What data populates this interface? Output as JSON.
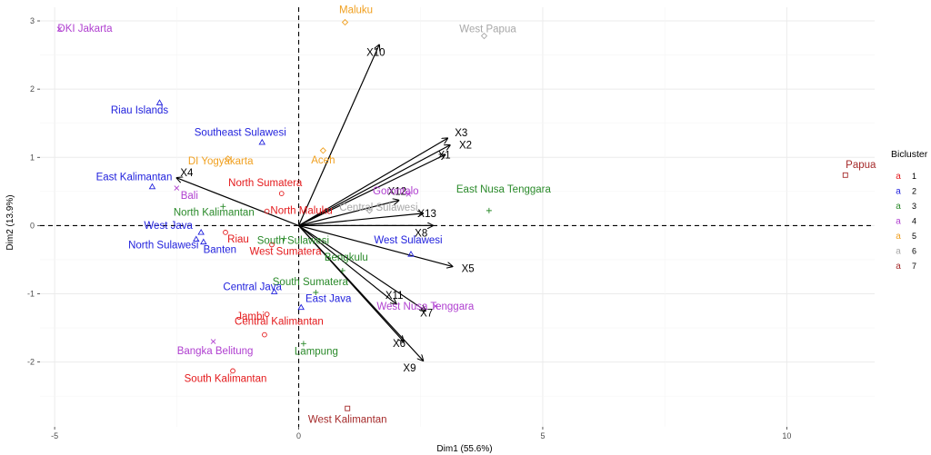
{
  "chart_data": {
    "type": "scatter",
    "subtype": "biplot",
    "xlabel": "Dim1 (55.6%)",
    "ylabel": "Dim2 (13.9%)",
    "xlim": [
      -5.3,
      11.8
    ],
    "ylim": [
      -2.95,
      3.2
    ],
    "xticks": [
      -5,
      0,
      5,
      10
    ],
    "yticks": [
      -2,
      -1,
      0,
      1,
      2,
      3
    ],
    "grid": true,
    "reference_lines": {
      "x": 0,
      "y": 0,
      "style": "dashed"
    },
    "legend": {
      "title": "Bicluster",
      "position": "right",
      "key_glyph": "a",
      "items": [
        {
          "label": "1",
          "color": "#e41a1c"
        },
        {
          "label": "2",
          "color": "#2222dd"
        },
        {
          "label": "3",
          "color": "#2a8a2a"
        },
        {
          "label": "4",
          "color": "#b040d0"
        },
        {
          "label": "5",
          "color": "#f0a020"
        },
        {
          "label": "6",
          "color": "#a8a8a8"
        },
        {
          "label": "7",
          "color": "#a52a2a"
        }
      ]
    },
    "points": [
      {
        "name": "DKI Jakarta",
        "x": -4.9,
        "y": 2.88,
        "cluster": "4"
      },
      {
        "name": "Maluku",
        "x": 0.95,
        "y": 2.98,
        "cluster": "5"
      },
      {
        "name": "West Papua",
        "x": 3.8,
        "y": 2.78,
        "cluster": "6"
      },
      {
        "name": "Riau Islands",
        "x": -2.85,
        "y": 1.8,
        "cluster": "2"
      },
      {
        "name": "Southeast Sulawesi",
        "x": -0.75,
        "y": 1.22,
        "cluster": "2"
      },
      {
        "name": "DI Yogyakarta",
        "x": -1.45,
        "y": 0.98,
        "cluster": "5"
      },
      {
        "name": "Aceh",
        "x": 0.5,
        "y": 1.1,
        "cluster": "5"
      },
      {
        "name": "East Kalimantan",
        "x": -3.0,
        "y": 0.57,
        "cluster": "2"
      },
      {
        "name": "Bali",
        "x": -2.5,
        "y": 0.55,
        "cluster": "4"
      },
      {
        "name": "North Sumatera",
        "x": -0.35,
        "y": 0.47,
        "cluster": "1"
      },
      {
        "name": "North Maluku",
        "x": -0.65,
        "y": 0.21,
        "cluster": "1"
      },
      {
        "name": "Gorontalo",
        "x": 2.25,
        "y": 0.46,
        "cluster": "4"
      },
      {
        "name": "Central Sulawesi",
        "x": 1.45,
        "y": 0.22,
        "cluster": "6"
      },
      {
        "name": "East Nusa Tenggara",
        "x": 3.9,
        "y": 0.22,
        "cluster": "3"
      },
      {
        "name": "North Kalimantan",
        "x": -1.55,
        "y": 0.28,
        "cluster": "3"
      },
      {
        "name": "Papua",
        "x": 11.2,
        "y": 0.74,
        "cluster": "7"
      },
      {
        "name": "South Sulawesi",
        "x": -0.3,
        "y": -0.19,
        "cluster": "3"
      },
      {
        "name": "West Java",
        "x": -2.0,
        "y": -0.1,
        "cluster": "2"
      },
      {
        "name": "North Sulawesi",
        "x": -2.1,
        "y": -0.2,
        "cluster": "2"
      },
      {
        "name": "Banten",
        "x": -1.95,
        "y": -0.24,
        "cluster": "2"
      },
      {
        "name": "Riau",
        "x": -1.5,
        "y": -0.1,
        "cluster": "1"
      },
      {
        "name": "West Sumatera",
        "x": -0.55,
        "y": -0.28,
        "cluster": "1"
      },
      {
        "name": "West Sulawesi",
        "x": 2.3,
        "y": -0.42,
        "cluster": "2"
      },
      {
        "name": "Bengkulu",
        "x": 0.9,
        "y": -0.66,
        "cluster": "3"
      },
      {
        "name": "South Sumatera",
        "x": 0.35,
        "y": -0.98,
        "cluster": "3"
      },
      {
        "name": "Central Java",
        "x": -0.5,
        "y": -0.97,
        "cluster": "2"
      },
      {
        "name": "East Java",
        "x": 0.05,
        "y": -1.2,
        "cluster": "2"
      },
      {
        "name": "Jambi",
        "x": -0.65,
        "y": -1.3,
        "cluster": "1"
      },
      {
        "name": "West Nusa Tenggara",
        "x": 2.8,
        "y": -1.18,
        "cluster": "4"
      },
      {
        "name": "Central Kalimantan",
        "x": -0.7,
        "y": -1.6,
        "cluster": "1"
      },
      {
        "name": "Lampung",
        "x": 0.1,
        "y": -1.73,
        "cluster": "3"
      },
      {
        "name": "Bangka Belitung",
        "x": -1.75,
        "y": -1.7,
        "cluster": "4"
      },
      {
        "name": "South Kalimantan",
        "x": -1.35,
        "y": -2.13,
        "cluster": "1"
      },
      {
        "name": "West Kalimantan",
        "x": 1.0,
        "y": -2.68,
        "cluster": "7"
      }
    ],
    "vectors": [
      {
        "name": "X10",
        "x": 1.65,
        "y": 2.65
      },
      {
        "name": "X3",
        "x": 3.05,
        "y": 1.28
      },
      {
        "name": "X2",
        "x": 3.1,
        "y": 1.18
      },
      {
        "name": "X1",
        "x": 3.0,
        "y": 1.04
      },
      {
        "name": "X4",
        "x": -2.5,
        "y": 0.7
      },
      {
        "name": "X12",
        "x": 2.05,
        "y": 0.37
      },
      {
        "name": "X13",
        "x": 2.55,
        "y": 0.18
      },
      {
        "name": "X8",
        "x": 2.75,
        "y": 0.0
      },
      {
        "name": "X5",
        "x": 3.15,
        "y": -0.6
      },
      {
        "name": "X11",
        "x": 2.0,
        "y": -1.15
      },
      {
        "name": "X7",
        "x": 2.6,
        "y": -1.25
      },
      {
        "name": "X6",
        "x": 2.15,
        "y": -1.7
      },
      {
        "name": "X9",
        "x": 2.55,
        "y": -1.98
      }
    ]
  }
}
